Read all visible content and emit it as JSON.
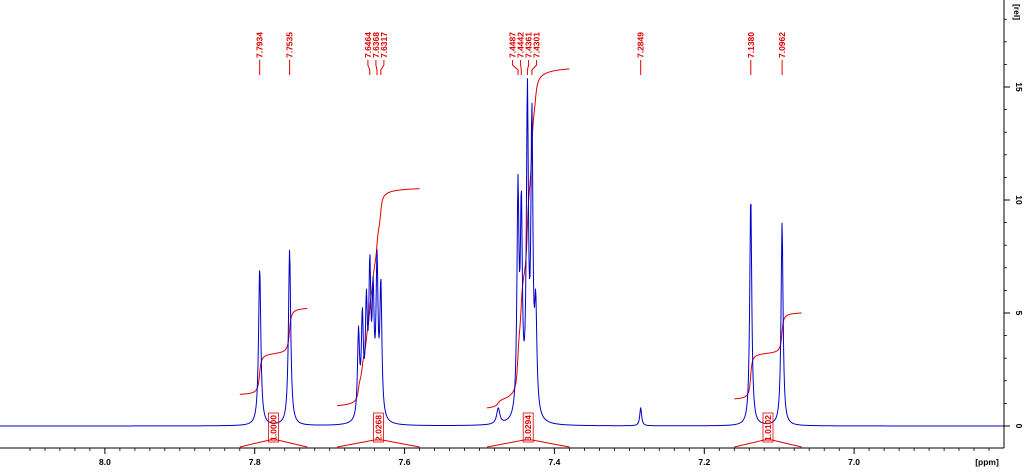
{
  "chart_data": {
    "type": "line",
    "xlabel": "[ppm]",
    "ylabel": "[rel]",
    "x_reversed": true,
    "xlim": [
      8.14,
      6.8
    ],
    "ylim": [
      0,
      18
    ],
    "x_ticks": [
      "8.0",
      "7.8",
      "7.6",
      "7.4",
      "7.2",
      "7.0"
    ],
    "x_tick_values": [
      8.0,
      7.8,
      7.6,
      7.4,
      7.2,
      7.0
    ],
    "y_ticks": [
      "0",
      "5",
      "10",
      "15"
    ],
    "y_tick_values": [
      0,
      5,
      10,
      15
    ],
    "series": [
      {
        "peaks": [
          {
            "ppm": 7.7934,
            "height": 7.0,
            "width": 0.0018
          },
          {
            "ppm": 7.7535,
            "height": 7.8,
            "width": 0.0018
          },
          {
            "ppm": 7.6615,
            "height": 3.8,
            "width": 0.0016
          },
          {
            "ppm": 7.6564,
            "height": 4.3,
            "width": 0.0016
          },
          {
            "ppm": 7.651,
            "height": 4.7,
            "width": 0.0016
          },
          {
            "ppm": 7.6464,
            "height": 6.2,
            "width": 0.0016
          },
          {
            "ppm": 7.642,
            "height": 5.0,
            "width": 0.0016
          },
          {
            "ppm": 7.6368,
            "height": 6.6,
            "width": 0.0016
          },
          {
            "ppm": 7.6317,
            "height": 5.8,
            "width": 0.0016
          },
          {
            "ppm": 7.475,
            "height": 0.7,
            "width": 0.0025
          },
          {
            "ppm": 7.4487,
            "height": 9.8,
            "width": 0.0016
          },
          {
            "ppm": 7.4442,
            "height": 8.8,
            "width": 0.0016
          },
          {
            "ppm": 7.4361,
            "height": 14.0,
            "width": 0.0016
          },
          {
            "ppm": 7.4301,
            "height": 12.8,
            "width": 0.0016
          },
          {
            "ppm": 7.425,
            "height": 4.5,
            "width": 0.0018
          },
          {
            "ppm": 7.2849,
            "height": 0.8,
            "width": 0.0015
          },
          {
            "ppm": 7.138,
            "height": 10.2,
            "width": 0.0016
          },
          {
            "ppm": 7.0962,
            "height": 9.0,
            "width": 0.0016
          }
        ]
      }
    ],
    "peak_labels": [
      {
        "label": "7.7934",
        "ppm": 7.7934
      },
      {
        "label": "7.7535",
        "ppm": 7.7535
      },
      {
        "label": "7.6464",
        "ppm": 7.6464
      },
      {
        "label": "7.6368",
        "ppm": 7.6368
      },
      {
        "label": "7.6317",
        "ppm": 7.6317
      },
      {
        "label": "7.4487",
        "ppm": 7.4487
      },
      {
        "label": "7.4442",
        "ppm": 7.4442
      },
      {
        "label": "7.4361",
        "ppm": 7.4361
      },
      {
        "label": "7.4301",
        "ppm": 7.4301
      },
      {
        "label": "7.2849",
        "ppm": 7.2849
      },
      {
        "label": "7.1380",
        "ppm": 7.138
      },
      {
        "label": "7.0962",
        "ppm": 7.0962
      }
    ],
    "integrals": [
      {
        "label": "1.0000",
        "from": 7.82,
        "to": 7.73
      },
      {
        "label": "2.0268",
        "from": 7.69,
        "to": 7.58
      },
      {
        "label": "3.0294",
        "from": 7.49,
        "to": 7.38
      },
      {
        "label": "1.0102",
        "from": 7.16,
        "to": 7.07
      }
    ],
    "colors": {
      "spectrum": "#0000cc",
      "annotation": "#e00000",
      "axis": "#000000"
    },
    "grid": false
  }
}
